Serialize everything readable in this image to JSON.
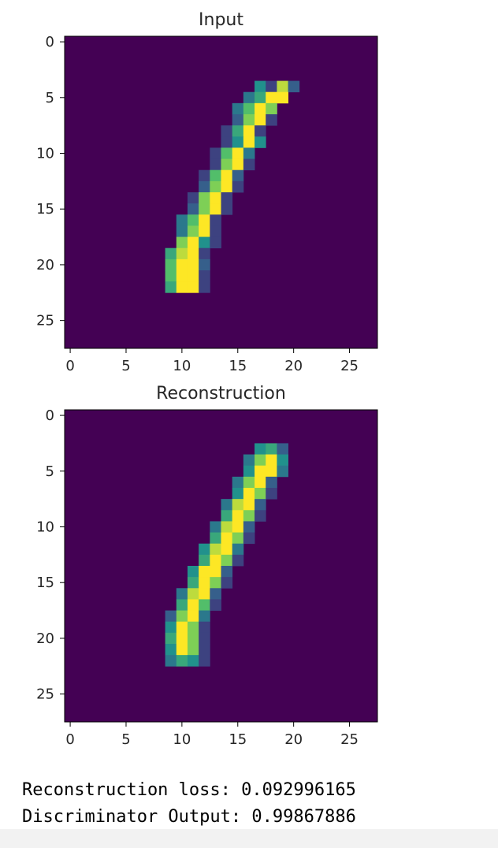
{
  "colormap": {
    "name": "viridis",
    "background": "#440154",
    "stops": [
      "#440154",
      "#3b528b",
      "#21918c",
      "#5ec962",
      "#fde725"
    ]
  },
  "chart_data": [
    {
      "type": "heatmap",
      "title": "Input",
      "xlabel": "",
      "ylabel": "",
      "xlim": [
        -0.5,
        27.5
      ],
      "ylim": [
        27.5,
        -0.5
      ],
      "xticks": [
        0,
        5,
        10,
        15,
        20,
        25
      ],
      "yticks": [
        0,
        5,
        10,
        15,
        20,
        25
      ],
      "grid": false,
      "values": [
        [
          4,
          17,
          0.5,
          0.2,
          0.9,
          0.3
        ],
        [
          5,
          16,
          0.4,
          0.6,
          1.0,
          1.0
        ],
        [
          6,
          15,
          0.4,
          0.7,
          1.0,
          0.8
        ],
        [
          7,
          15,
          0.3,
          0.8,
          1.0,
          0.2
        ],
        [
          8,
          14,
          0.2,
          0.6,
          1.0,
          0.2
        ],
        [
          9,
          14,
          0.2,
          0.5,
          1.0,
          0.5
        ],
        [
          10,
          13,
          0.2,
          0.7,
          1.0,
          0.4
        ],
        [
          11,
          13,
          0.2,
          0.8,
          1.0,
          0.2
        ],
        [
          12,
          12,
          0.2,
          0.7,
          1.0,
          0.3
        ],
        [
          13,
          12,
          0.3,
          0.8,
          1.0,
          0.2
        ],
        [
          14,
          11,
          0.2,
          0.8,
          1.0,
          0.2
        ],
        [
          15,
          11,
          0.3,
          0.8,
          1.0,
          0.2
        ],
        [
          16,
          10,
          0.4,
          0.7,
          1.0,
          0.2
        ],
        [
          17,
          10,
          0.4,
          0.8,
          1.0,
          0.2
        ],
        [
          18,
          10,
          0.8,
          1.0,
          0.5,
          0.2
        ],
        [
          19,
          9,
          0.6,
          0.9,
          1.0,
          0.2
        ],
        [
          20,
          9,
          0.7,
          1.0,
          1.0,
          0.3
        ],
        [
          21,
          9,
          0.7,
          1.0,
          1.0,
          0.2
        ],
        [
          22,
          9,
          0.6,
          1.0,
          1.0,
          0.2
        ]
      ]
    },
    {
      "type": "heatmap",
      "title": "Reconstruction",
      "xlabel": "",
      "ylabel": "",
      "xlim": [
        -0.5,
        27.5
      ],
      "ylim": [
        27.5,
        -0.5
      ],
      "xticks": [
        0,
        5,
        10,
        15,
        20,
        25
      ],
      "yticks": [
        0,
        5,
        10,
        15,
        20,
        25
      ],
      "grid": false,
      "values": [
        [
          3,
          17,
          0.5,
          0.6,
          0.3
        ],
        [
          4,
          16,
          0.4,
          0.8,
          1.0,
          0.5
        ],
        [
          5,
          16,
          0.5,
          1.0,
          1.0,
          0.4
        ],
        [
          6,
          15,
          0.4,
          0.8,
          1.0,
          0.3
        ],
        [
          7,
          15,
          0.5,
          1.0,
          0.8,
          0.2
        ],
        [
          8,
          14,
          0.4,
          0.9,
          1.0,
          0.3
        ],
        [
          9,
          14,
          0.6,
          1.0,
          0.8,
          0.2
        ],
        [
          10,
          13,
          0.4,
          0.9,
          1.0,
          0.3
        ],
        [
          11,
          13,
          0.6,
          1.0,
          0.8,
          0.2
        ],
        [
          12,
          12,
          0.5,
          0.9,
          1.0,
          0.4
        ],
        [
          13,
          12,
          0.6,
          1.0,
          0.8,
          0.2
        ],
        [
          14,
          11,
          0.5,
          1.0,
          1.0,
          0.3
        ],
        [
          15,
          11,
          0.6,
          1.0,
          0.8,
          0.2
        ],
        [
          16,
          10,
          0.4,
          0.9,
          1.0,
          0.3
        ],
        [
          17,
          10,
          0.6,
          1.0,
          0.7,
          0.2
        ],
        [
          18,
          9,
          0.3,
          0.8,
          1.0,
          0.4
        ],
        [
          19,
          9,
          0.5,
          1.0,
          0.8,
          0.2
        ],
        [
          20,
          9,
          0.6,
          1.0,
          0.8,
          0.2
        ],
        [
          21,
          9,
          0.5,
          1.0,
          0.8,
          0.2
        ],
        [
          22,
          9,
          0.4,
          0.6,
          0.5,
          0.2
        ]
      ]
    }
  ],
  "output": {
    "line1": "Reconstruction loss: 0.092996165",
    "line2": "Discriminator Output: 0.99867886"
  }
}
